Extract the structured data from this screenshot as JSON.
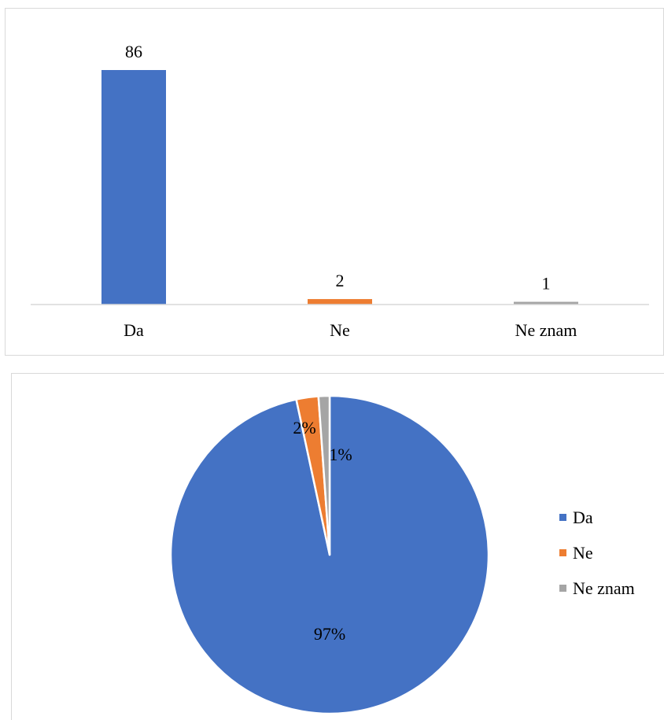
{
  "chart_data": [
    {
      "type": "bar",
      "categories": [
        "Da",
        "Ne",
        "Ne znam"
      ],
      "values": [
        86,
        2,
        1
      ],
      "data_labels": [
        "86",
        "2",
        "1"
      ],
      "title": "",
      "xlabel": "",
      "ylabel": "",
      "ylim": [
        0,
        86
      ],
      "grid": false,
      "colors": [
        "#4472C4",
        "#ED7D31",
        "#A5A5A5"
      ]
    },
    {
      "type": "pie",
      "categories": [
        "Da",
        "Ne",
        "Ne znam"
      ],
      "values": [
        86,
        2,
        1
      ],
      "data_labels": [
        "97%",
        "2%",
        "1%"
      ],
      "title": "",
      "legend": "right",
      "colors": [
        "#4472C4",
        "#ED7D31",
        "#A5A5A5"
      ]
    }
  ]
}
